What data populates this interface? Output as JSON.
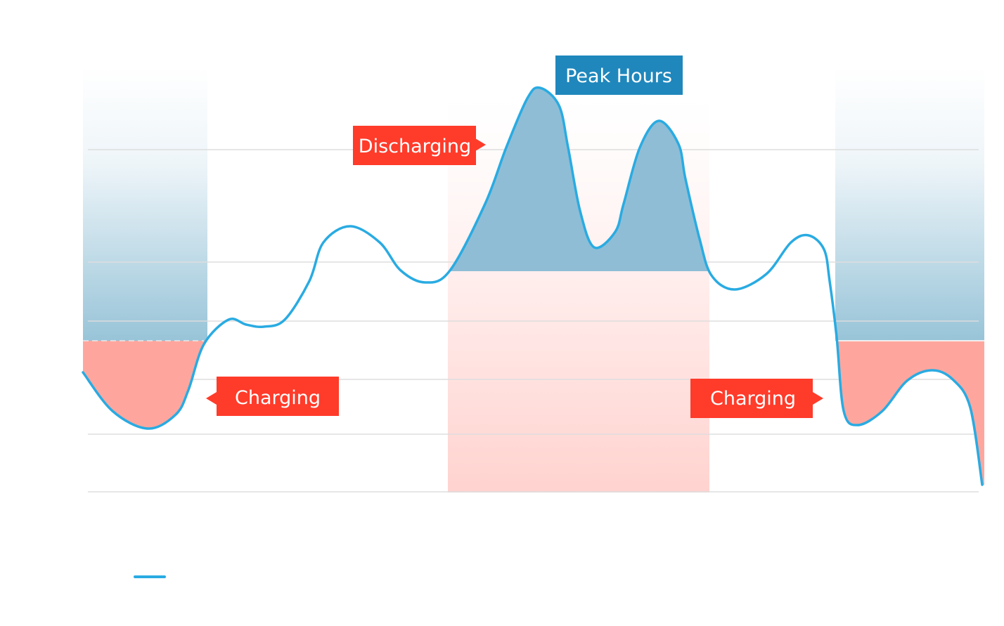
{
  "labels": {
    "peak_hours": "Peak Hours",
    "discharging": "Discharging",
    "charging_left": "Charging",
    "charging_right": "Charging"
  },
  "colors": {
    "line": "#29abe2",
    "peak_label": "#1f87bc",
    "callout": "#ff3b2a",
    "discharge_fill": "#8fbdd6",
    "charge_fill": "#fea69e",
    "peak_band": "#ffd3cf",
    "grid": "#dddddd"
  },
  "legend": {
    "line_icon": "legend-line-swatch"
  }
}
